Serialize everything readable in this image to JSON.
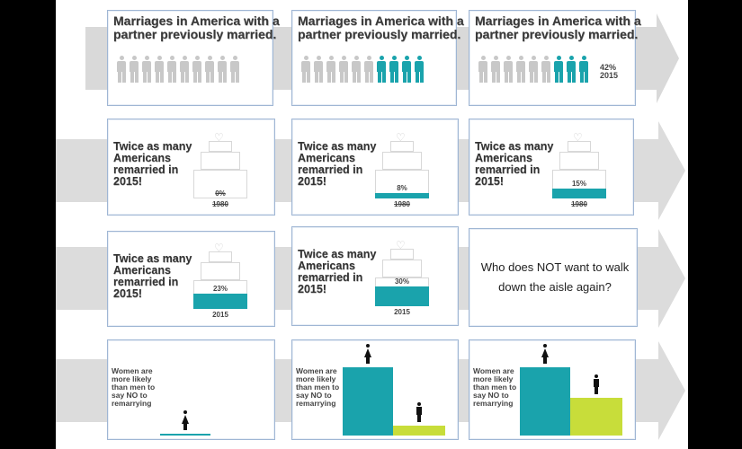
{
  "colors": {
    "teal": "#1aa3ac",
    "lime": "#c8dd3a",
    "gray_figure": "#c8c8c8",
    "arrow": "#d9d9d9"
  },
  "row1": {
    "title": "Marriages in America with a partner previously married.",
    "panels": [
      {
        "teal_count": 0
      },
      {
        "teal_count": 4
      },
      {
        "teal_count": 4,
        "percent": "42%",
        "year": "2015"
      }
    ]
  },
  "cake_text": "Twice as many Americans remarried in 2015!",
  "cakes": [
    {
      "percent": "0%",
      "year": "1980",
      "fill": 0.0
    },
    {
      "percent": "8%",
      "year": "1980",
      "fill": 0.08
    },
    {
      "percent": "15%",
      "year": "1980",
      "fill": 0.15
    },
    {
      "percent": "23%",
      "year": "2015",
      "fill": 0.23
    },
    {
      "percent": "30%",
      "year": "2015",
      "fill": 0.3
    }
  ],
  "question": "Who does NOT want to walk down the aisle again?",
  "women_text": "Women are more likely than men to say NO to remarrying",
  "women_panels": [
    {
      "women_level": 0.0,
      "men_level": 0.0
    },
    {
      "women_level": 1.0,
      "men_level": 0.14
    },
    {
      "women_level": 1.0,
      "men_level": 0.55
    }
  ]
}
